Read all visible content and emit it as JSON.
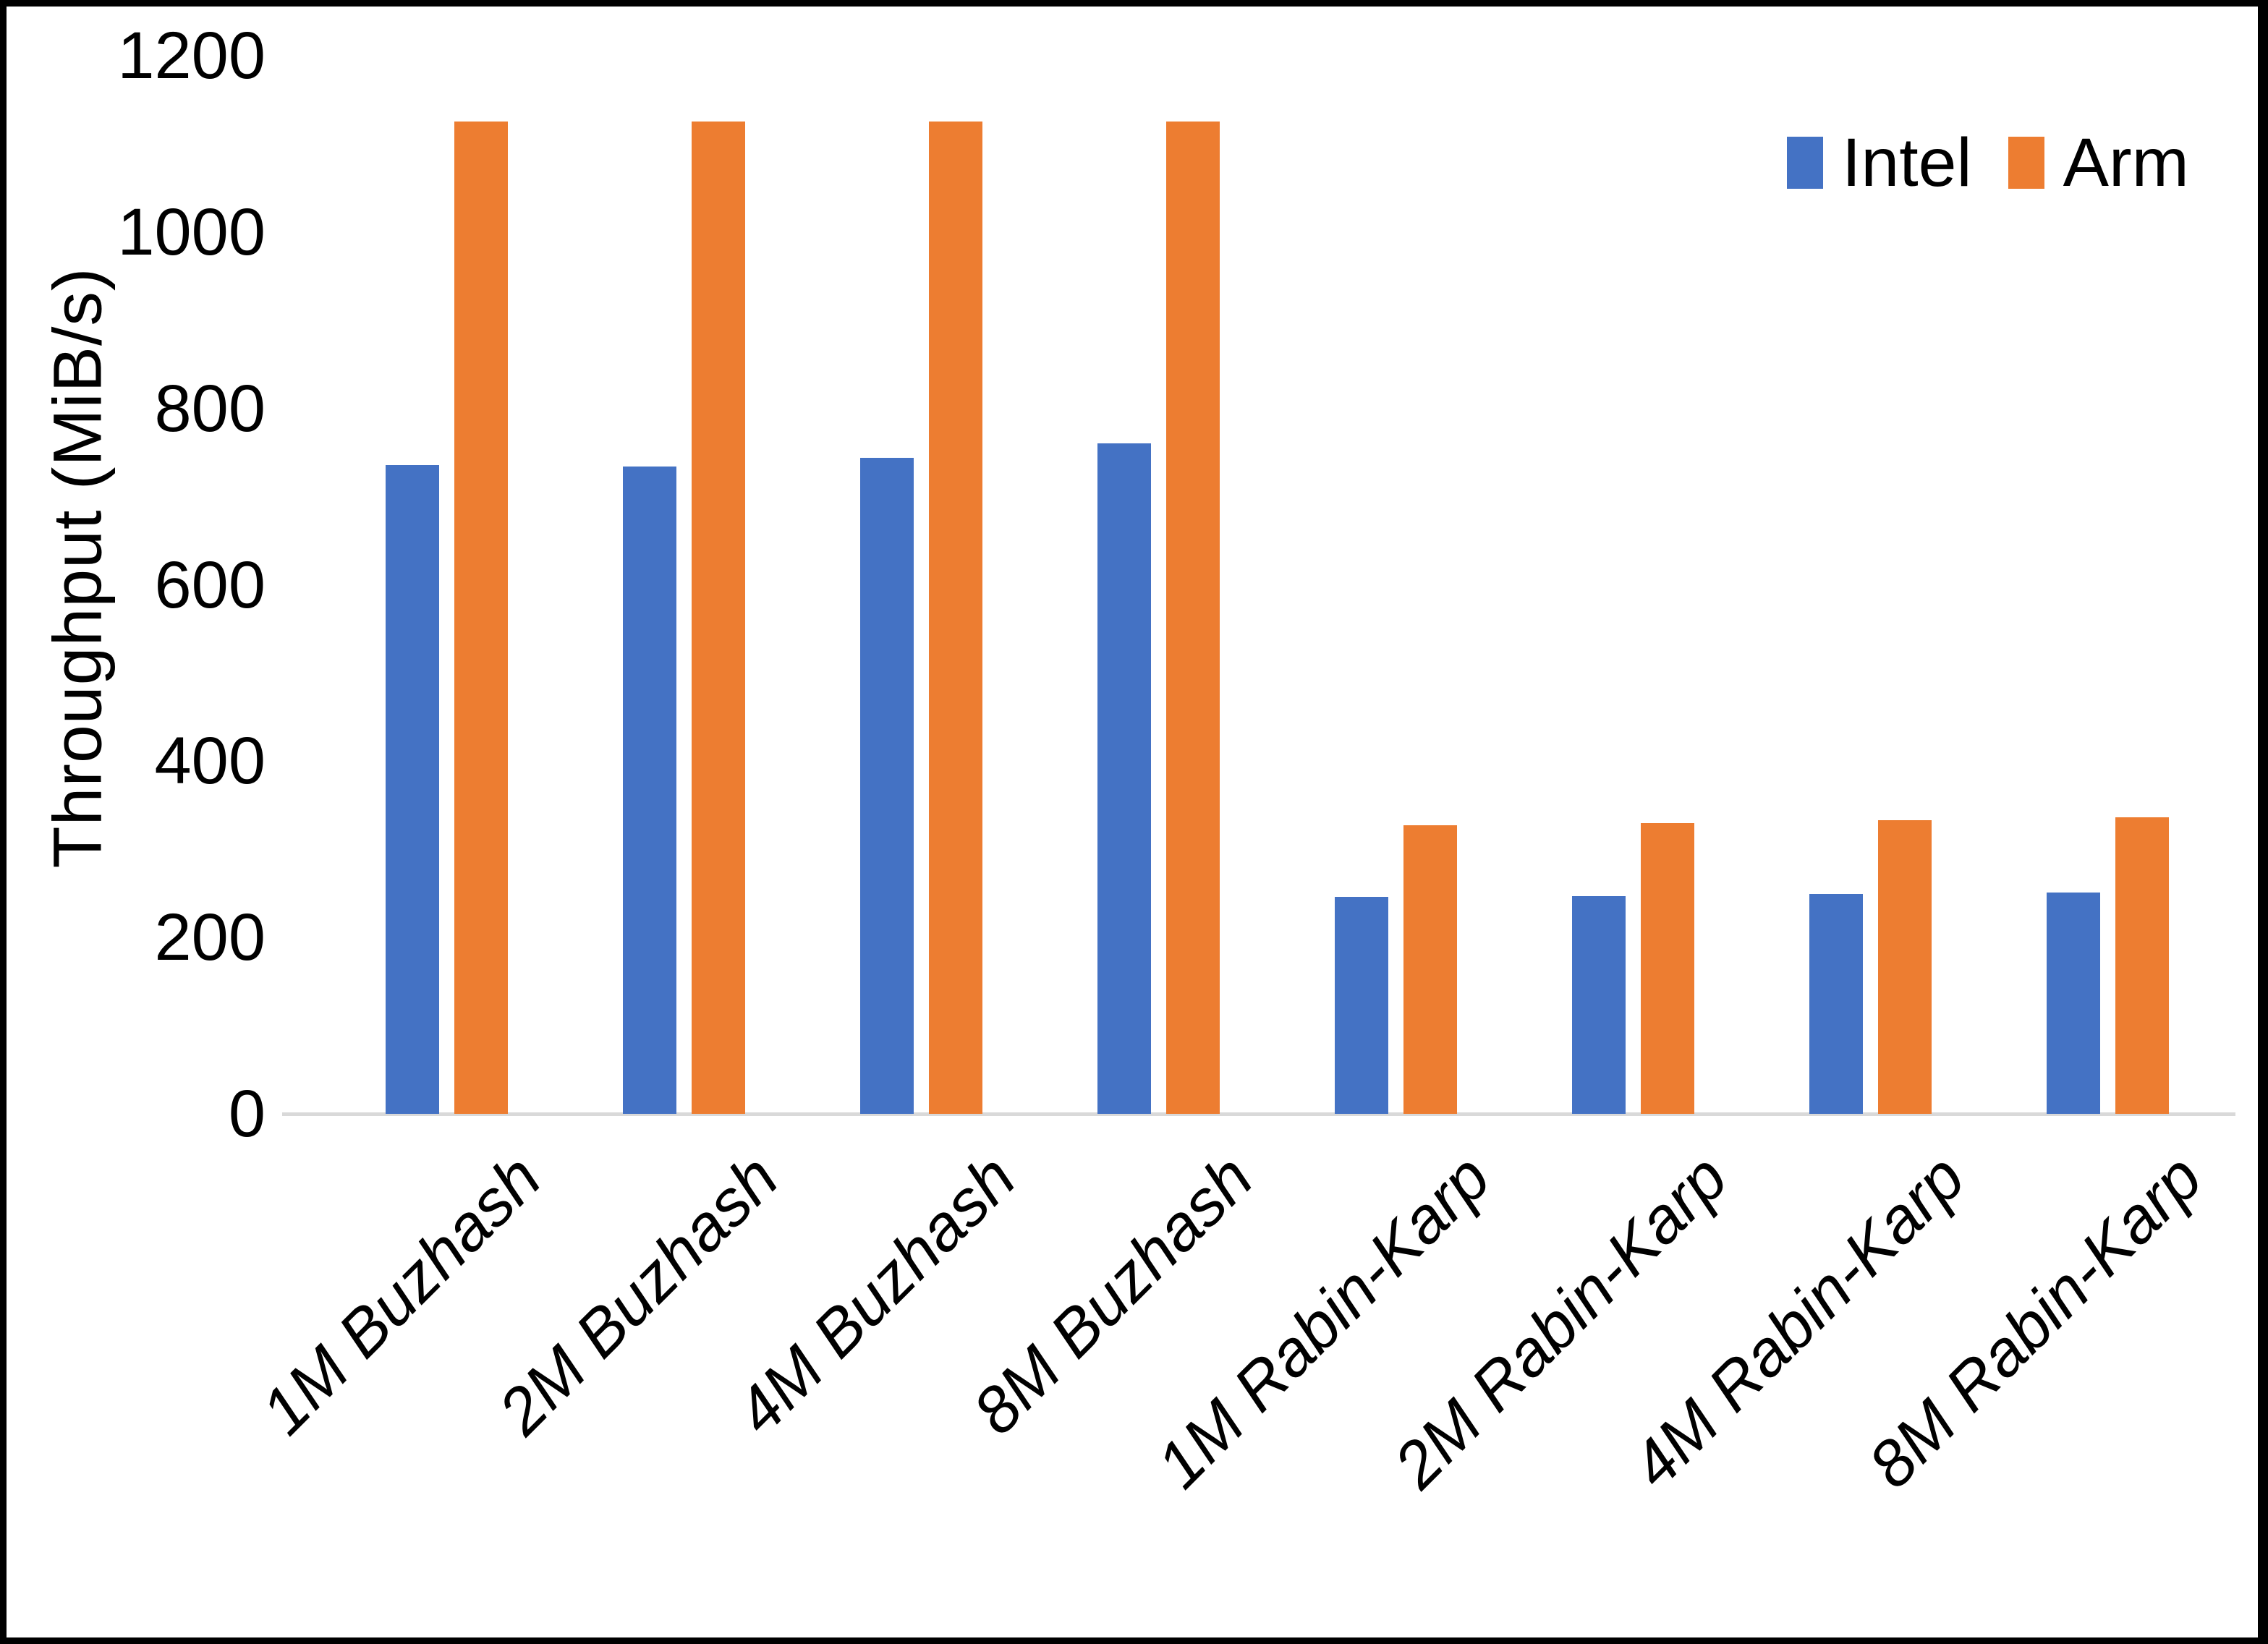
{
  "chart_data": {
    "type": "bar",
    "title": "",
    "xlabel": "",
    "ylabel": "Throughput (MiB/s)",
    "ylim": [
      0,
      1200
    ],
    "yticks": [
      0,
      200,
      400,
      600,
      800,
      1000,
      1200
    ],
    "grid": false,
    "legend_position": "top-right",
    "categories": [
      "1M Buzhash",
      "2M Buzhash",
      "4M Buzhash",
      "8M Buzhash",
      "1M Rabin-Karp",
      "2M Rabin-Karp",
      "4M Rabin-Karp",
      "8M Rabin-Karp"
    ],
    "series": [
      {
        "name": "Intel",
        "color": "#4472C4",
        "values": [
          736,
          734,
          744,
          760,
          246,
          247,
          249,
          251
        ]
      },
      {
        "name": "Arm",
        "color": "#ED7D31",
        "values": [
          1125,
          1125,
          1125,
          1125,
          327,
          330,
          333,
          336
        ]
      }
    ]
  },
  "colors": {
    "axis_line": "#d9d9d9",
    "text": "#000000",
    "background": "#ffffff",
    "border": "#000000"
  }
}
